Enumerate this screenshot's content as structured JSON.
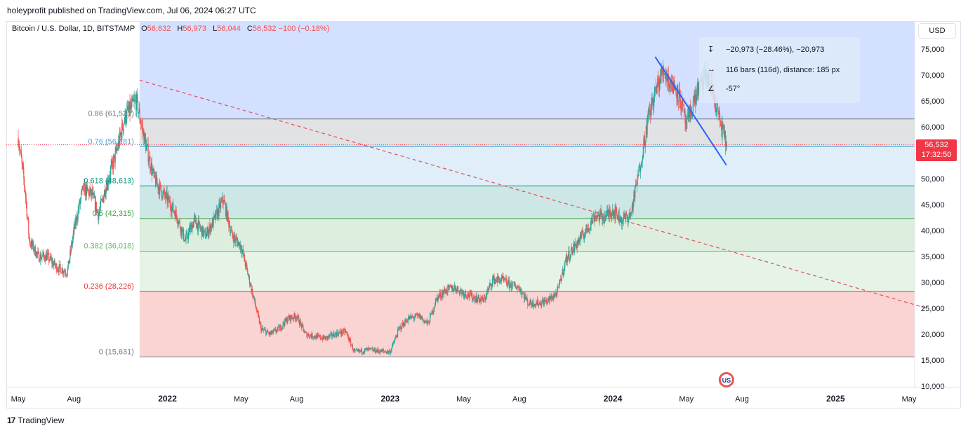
{
  "header": {
    "published": "holeyprofit published on TradingView.com, Jul 06, 2024 06:27 UTC"
  },
  "legend": {
    "symbol": "Bitcoin / U.S. Dollar, 1D, BITSTAMP",
    "o_label": "O",
    "o": "56,632",
    "h_label": "H",
    "h": "56,973",
    "l_label": "L",
    "l": "56,044",
    "c_label": "C",
    "c": "56,532",
    "change": "−100 (−0.18%)"
  },
  "currency": "USD",
  "measure": {
    "range": "−20,973 (−28.46%), −20,973",
    "bars": "116 bars (116d), distance: 185 px",
    "angle": "-57°"
  },
  "last_price": {
    "price": "56,532",
    "countdown": "17:32:50"
  },
  "footer": {
    "brand": "TradingView",
    "logo": "17"
  },
  "colors": {
    "up": "#26a69a",
    "down": "#ef5350",
    "trend": "#e04e5b",
    "measure_line": "#2962ff"
  },
  "chart_data": {
    "type": "candlestick",
    "title": "Bitcoin / U.S. Dollar, 1D, BITSTAMP",
    "ylim": [
      10000,
      77000
    ],
    "xlim": [
      2021.33,
      2025.41
    ],
    "y_ticks": [
      10000,
      15000,
      20000,
      25000,
      30000,
      35000,
      40000,
      45000,
      50000,
      55000,
      60000,
      65000,
      70000,
      75000
    ],
    "y_tick_labels": [
      "10,000",
      "15,000",
      "20,000",
      "25,000",
      "30,000",
      "35,000",
      "40,000",
      "45,000",
      "50,000",
      "55,000",
      "60,000",
      "65,000",
      "70,000",
      "75,000"
    ],
    "x_ticks": [
      {
        "t": 2021.33,
        "label": "May"
      },
      {
        "t": 2021.58,
        "label": "Aug"
      },
      {
        "t": 2022.0,
        "label": "2022"
      },
      {
        "t": 2022.33,
        "label": "May"
      },
      {
        "t": 2022.58,
        "label": "Aug"
      },
      {
        "t": 2023.0,
        "label": "2023"
      },
      {
        "t": 2023.33,
        "label": "May"
      },
      {
        "t": 2023.58,
        "label": "Aug"
      },
      {
        "t": 2024.0,
        "label": "2024"
      },
      {
        "t": 2024.33,
        "label": "May"
      },
      {
        "t": 2024.58,
        "label": "Aug"
      },
      {
        "t": 2025.0,
        "label": "2025"
      },
      {
        "t": 2025.33,
        "label": "May"
      }
    ],
    "price_path": [
      [
        2021.33,
        58000
      ],
      [
        2021.36,
        48000
      ],
      [
        2021.38,
        38000
      ],
      [
        2021.42,
        35000
      ],
      [
        2021.46,
        35000
      ],
      [
        2021.5,
        33000
      ],
      [
        2021.55,
        32000
      ],
      [
        2021.58,
        40000
      ],
      [
        2021.62,
        48000
      ],
      [
        2021.66,
        47000
      ],
      [
        2021.69,
        43000
      ],
      [
        2021.72,
        48000
      ],
      [
        2021.77,
        55000
      ],
      [
        2021.81,
        62000
      ],
      [
        2021.86,
        65000
      ],
      [
        2021.9,
        57000
      ],
      [
        2021.94,
        50000
      ],
      [
        2021.98,
        47000
      ],
      [
        2022.0,
        46000
      ],
      [
        2022.04,
        43000
      ],
      [
        2022.08,
        38000
      ],
      [
        2022.12,
        42000
      ],
      [
        2022.17,
        39000
      ],
      [
        2022.21,
        42000
      ],
      [
        2022.25,
        46000
      ],
      [
        2022.29,
        39000
      ],
      [
        2022.33,
        37000
      ],
      [
        2022.37,
        30000
      ],
      [
        2022.42,
        21000
      ],
      [
        2022.46,
        20000
      ],
      [
        2022.5,
        21000
      ],
      [
        2022.54,
        23000
      ],
      [
        2022.58,
        23500
      ],
      [
        2022.62,
        20000
      ],
      [
        2022.67,
        19500
      ],
      [
        2022.71,
        19200
      ],
      [
        2022.75,
        20000
      ],
      [
        2022.8,
        20500
      ],
      [
        2022.84,
        16500
      ],
      [
        2022.9,
        17000
      ],
      [
        2022.96,
        16700
      ],
      [
        2023.0,
        16600
      ],
      [
        2023.04,
        21000
      ],
      [
        2023.08,
        23000
      ],
      [
        2023.13,
        23500
      ],
      [
        2023.17,
        22000
      ],
      [
        2023.21,
        27000
      ],
      [
        2023.25,
        28500
      ],
      [
        2023.29,
        29000
      ],
      [
        2023.33,
        28000
      ],
      [
        2023.38,
        27000
      ],
      [
        2023.42,
        26500
      ],
      [
        2023.46,
        30500
      ],
      [
        2023.5,
        30500
      ],
      [
        2023.54,
        29500
      ],
      [
        2023.58,
        29000
      ],
      [
        2023.62,
        26000
      ],
      [
        2023.67,
        26000
      ],
      [
        2023.71,
        26500
      ],
      [
        2023.75,
        28000
      ],
      [
        2023.79,
        34500
      ],
      [
        2023.83,
        37000
      ],
      [
        2023.88,
        40000
      ],
      [
        2023.92,
        43000
      ],
      [
        2023.96,
        42500
      ],
      [
        2024.0,
        44000
      ],
      [
        2024.04,
        42000
      ],
      [
        2024.08,
        43000
      ],
      [
        2024.12,
        52000
      ],
      [
        2024.16,
        62000
      ],
      [
        2024.2,
        68000
      ],
      [
        2024.23,
        71000
      ],
      [
        2024.25,
        69000
      ],
      [
        2024.29,
        67000
      ],
      [
        2024.31,
        64000
      ],
      [
        2024.33,
        60000
      ],
      [
        2024.35,
        63000
      ],
      [
        2024.38,
        67000
      ],
      [
        2024.42,
        70000
      ],
      [
        2024.45,
        66500
      ],
      [
        2024.48,
        61000
      ],
      [
        2024.51,
        56532
      ]
    ],
    "fibonacci": [
      {
        "ratio": 0.86,
        "label": "0.86 (61,521)",
        "price": 61521,
        "color": "#787b86"
      },
      {
        "ratio": 0.76,
        "label": "0.76 (56,181)",
        "price": 56181,
        "color": "#4c9fd8"
      },
      {
        "ratio": 0.618,
        "label": "0.618 (48,613)",
        "price": 48613,
        "color": "#089981"
      },
      {
        "ratio": 0.5,
        "label": "0.5 (42,315)",
        "price": 42315,
        "color": "#43a047"
      },
      {
        "ratio": 0.382,
        "label": "0.382 (36,018)",
        "price": 36018,
        "color": "#66bb6a"
      },
      {
        "ratio": 0.236,
        "label": "0.236 (28,226)",
        "price": 28226,
        "color": "#e53935"
      },
      {
        "ratio": 0,
        "label": "0 (15,631)",
        "price": 15631,
        "color": "#787b86"
      }
    ],
    "fib_top": 77000,
    "fib_start": 2021.875,
    "trendline": {
      "from": [
        2021.875,
        69000
      ],
      "to": [
        2025.41,
        25000
      ],
      "style": "dashed"
    },
    "measure_line": {
      "from": [
        2024.19,
        73500
      ],
      "to": [
        2024.51,
        52600
      ]
    },
    "event_marker": {
      "t": 2024.51,
      "label": "US"
    }
  }
}
